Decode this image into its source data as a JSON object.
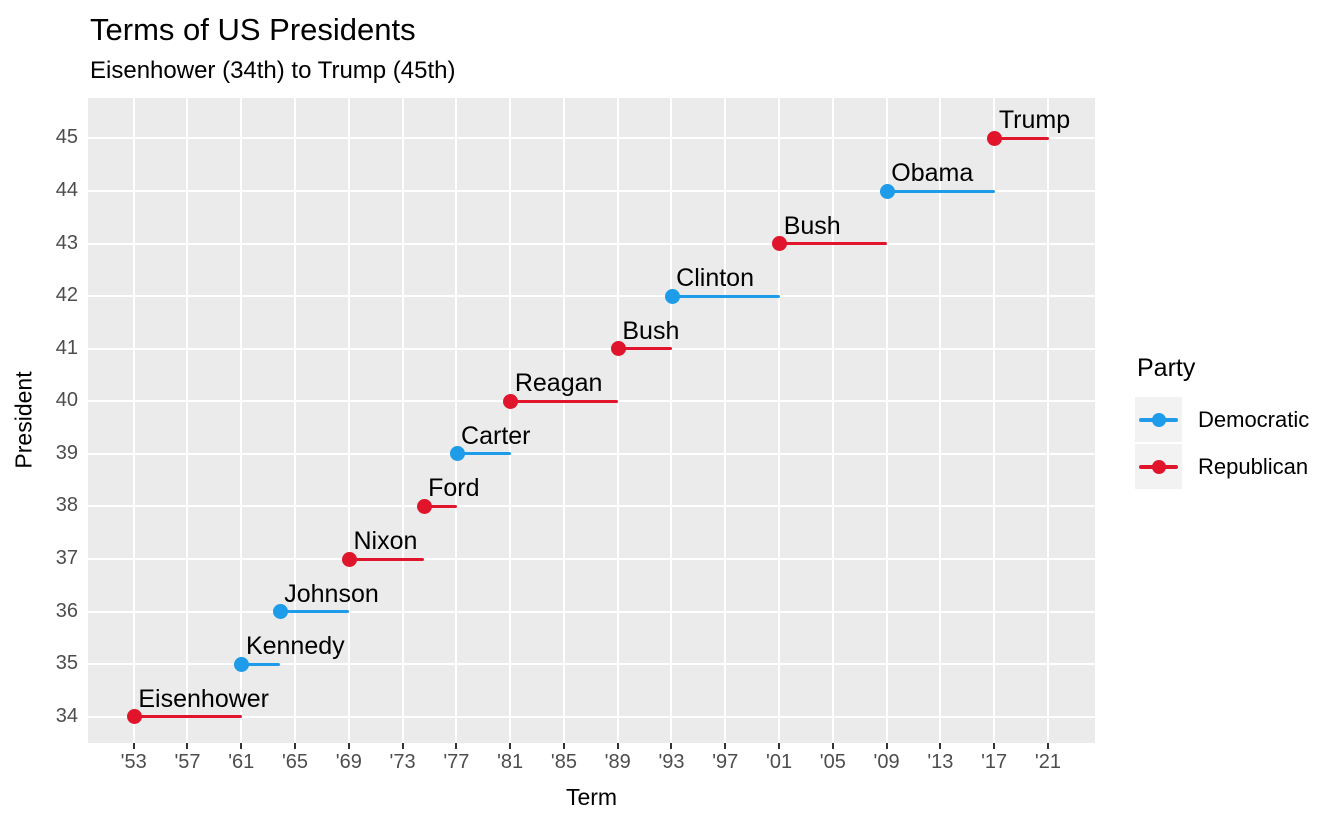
{
  "chart_data": {
    "type": "bar",
    "variant": "horizontal-segment-gantt",
    "title": "Terms of US Presidents",
    "subtitle": "Eisenhower (34th) to Trump (45th)",
    "xlabel": "Term",
    "ylabel": "President",
    "xlim": [
      1949.6,
      2024.5
    ],
    "ylim": [
      33.5,
      45.77
    ],
    "x_ticks": [
      {
        "year": 1953,
        "label": "'53"
      },
      {
        "year": 1957,
        "label": "'57"
      },
      {
        "year": 1961,
        "label": "'61"
      },
      {
        "year": 1965,
        "label": "'65"
      },
      {
        "year": 1969,
        "label": "'69"
      },
      {
        "year": 1973,
        "label": "'73"
      },
      {
        "year": 1977,
        "label": "'77"
      },
      {
        "year": 1981,
        "label": "'81"
      },
      {
        "year": 1985,
        "label": "'85"
      },
      {
        "year": 1989,
        "label": "'89"
      },
      {
        "year": 1993,
        "label": "'93"
      },
      {
        "year": 1997,
        "label": "'97"
      },
      {
        "year": 2001,
        "label": "'01"
      },
      {
        "year": 2005,
        "label": "'05"
      },
      {
        "year": 2009,
        "label": "'09"
      },
      {
        "year": 2013,
        "label": "'13"
      },
      {
        "year": 2017,
        "label": "'17"
      },
      {
        "year": 2021,
        "label": "'21"
      }
    ],
    "y_ticks": [
      34,
      35,
      36,
      37,
      38,
      39,
      40,
      41,
      42,
      43,
      44,
      45
    ],
    "grid": "major-only-white",
    "panel_background": "#EBEBEB",
    "series": [
      {
        "number": 34,
        "name": "Eisenhower",
        "party": "Republican",
        "start": 1953.05,
        "end": 1961.05
      },
      {
        "number": 35,
        "name": "Kennedy",
        "party": "Democratic",
        "start": 1961.05,
        "end": 1963.9
      },
      {
        "number": 36,
        "name": "Johnson",
        "party": "Democratic",
        "start": 1963.9,
        "end": 1969.05
      },
      {
        "number": 37,
        "name": "Nixon",
        "party": "Republican",
        "start": 1969.05,
        "end": 1974.6
      },
      {
        "number": 38,
        "name": "Ford",
        "party": "Republican",
        "start": 1974.6,
        "end": 1977.05
      },
      {
        "number": 39,
        "name": "Carter",
        "party": "Democratic",
        "start": 1977.05,
        "end": 1981.05
      },
      {
        "number": 40,
        "name": "Reagan",
        "party": "Republican",
        "start": 1981.05,
        "end": 1989.05
      },
      {
        "number": 41,
        "name": "Bush",
        "party": "Republican",
        "start": 1989.05,
        "end": 1993.05
      },
      {
        "number": 42,
        "name": "Clinton",
        "party": "Democratic",
        "start": 1993.05,
        "end": 2001.05
      },
      {
        "number": 43,
        "name": "Bush",
        "party": "Republican",
        "start": 2001.05,
        "end": 2009.05
      },
      {
        "number": 44,
        "name": "Obama",
        "party": "Democratic",
        "start": 2009.05,
        "end": 2017.05
      },
      {
        "number": 45,
        "name": "Trump",
        "party": "Republican",
        "start": 2017.05,
        "end": 2021.05
      }
    ],
    "legend": {
      "title": "Party",
      "position": "right",
      "entries": [
        {
          "label": "Democratic",
          "color": "#1E9BE9"
        },
        {
          "label": "Republican",
          "color": "#E0152B"
        }
      ]
    },
    "colors": {
      "Democratic": "#1E9BE9",
      "Republican": "#E0152B",
      "tick_text": "#4D4D4D",
      "grid": "#FFFFFF"
    }
  }
}
